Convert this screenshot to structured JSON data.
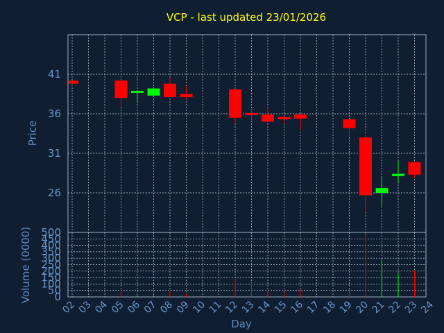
{
  "title": "VCP - last updated 23/01/2026",
  "colors": {
    "background": "#0f1e30",
    "plot_border": "#9fb3c8",
    "grid": "#c7d2de",
    "up": "#00ff00",
    "down": "#ff0000",
    "title": "#ffff00",
    "axis_text": "#6a96cc"
  },
  "chart_data": [
    {
      "type": "candlestick",
      "ylabel": "Price",
      "ylim": [
        21,
        46
      ],
      "yticks": [
        26,
        31,
        36,
        41
      ],
      "grid": true,
      "candles": [
        {
          "day": "02",
          "open": 40.2,
          "high": 40.2,
          "low": 39.8,
          "close": 39.8
        },
        {
          "day": "05",
          "open": 40.2,
          "high": 40.3,
          "low": 37.0,
          "close": 38.0
        },
        {
          "day": "06",
          "open": 38.7,
          "high": 38.9,
          "low": 37.3,
          "close": 38.9
        },
        {
          "day": "07",
          "open": 38.3,
          "high": 39.4,
          "low": 38.3,
          "close": 39.2
        },
        {
          "day": "08",
          "open": 39.8,
          "high": 40.5,
          "low": 38.1,
          "close": 38.1
        },
        {
          "day": "09",
          "open": 38.5,
          "high": 39.5,
          "low": 37.8,
          "close": 38.1
        },
        {
          "day": "12",
          "open": 39.1,
          "high": 39.1,
          "low": 34.8,
          "close": 35.5
        },
        {
          "day": "13",
          "open": 36.1,
          "high": 36.6,
          "low": 35.0,
          "close": 35.9
        },
        {
          "day": "14",
          "open": 35.9,
          "high": 36.8,
          "low": 34.9,
          "close": 35.0
        },
        {
          "day": "15",
          "open": 35.6,
          "high": 35.7,
          "low": 34.7,
          "close": 35.3
        },
        {
          "day": "16",
          "open": 35.9,
          "high": 36.0,
          "low": 34.0,
          "close": 35.4
        },
        {
          "day": "19",
          "open": 35.3,
          "high": 35.3,
          "low": 33.0,
          "close": 34.2
        },
        {
          "day": "20",
          "open": 33.0,
          "high": 33.4,
          "low": 23.5,
          "close": 25.7
        },
        {
          "day": "21",
          "open": 26.0,
          "high": 27.9,
          "low": 24.3,
          "close": 26.6
        },
        {
          "day": "22",
          "open": 28.2,
          "high": 30.0,
          "low": 27.2,
          "close": 28.4
        },
        {
          "day": "23",
          "open": 29.9,
          "high": 29.9,
          "low": 27.9,
          "close": 28.3
        }
      ]
    },
    {
      "type": "bar",
      "ylabel": "Volume (0000)",
      "ylim": [
        0,
        500
      ],
      "yticks": [
        0,
        50,
        100,
        150,
        200,
        250,
        300,
        350,
        400,
        450,
        500
      ],
      "grid": true,
      "volumes": [
        {
          "day": "02",
          "value": 0,
          "color": "green"
        },
        {
          "day": "05",
          "value": 55,
          "color": "red"
        },
        {
          "day": "06",
          "value": 15,
          "color": "green"
        },
        {
          "day": "07",
          "value": 12,
          "color": "green"
        },
        {
          "day": "08",
          "value": 50,
          "color": "red"
        },
        {
          "day": "09",
          "value": 22,
          "color": "red"
        },
        {
          "day": "12",
          "value": 140,
          "color": "red"
        },
        {
          "day": "13",
          "value": 110,
          "color": "red"
        },
        {
          "day": "14",
          "value": 50,
          "color": "red"
        },
        {
          "day": "15",
          "value": 40,
          "color": "red"
        },
        {
          "day": "16",
          "value": 60,
          "color": "red"
        },
        {
          "day": "19",
          "value": 45,
          "color": "red"
        },
        {
          "day": "20",
          "value": 490,
          "color": "red"
        },
        {
          "day": "21",
          "value": 290,
          "color": "green"
        },
        {
          "day": "22",
          "value": 185,
          "color": "green"
        },
        {
          "day": "23",
          "value": 205,
          "color": "red"
        }
      ]
    }
  ],
  "xaxis": {
    "label": "Day",
    "ticks": [
      "02",
      "03",
      "04",
      "05",
      "06",
      "07",
      "08",
      "09",
      "10",
      "11",
      "12",
      "13",
      "14",
      "15",
      "16",
      "17",
      "18",
      "19",
      "20",
      "21",
      "22",
      "23",
      "24"
    ]
  }
}
